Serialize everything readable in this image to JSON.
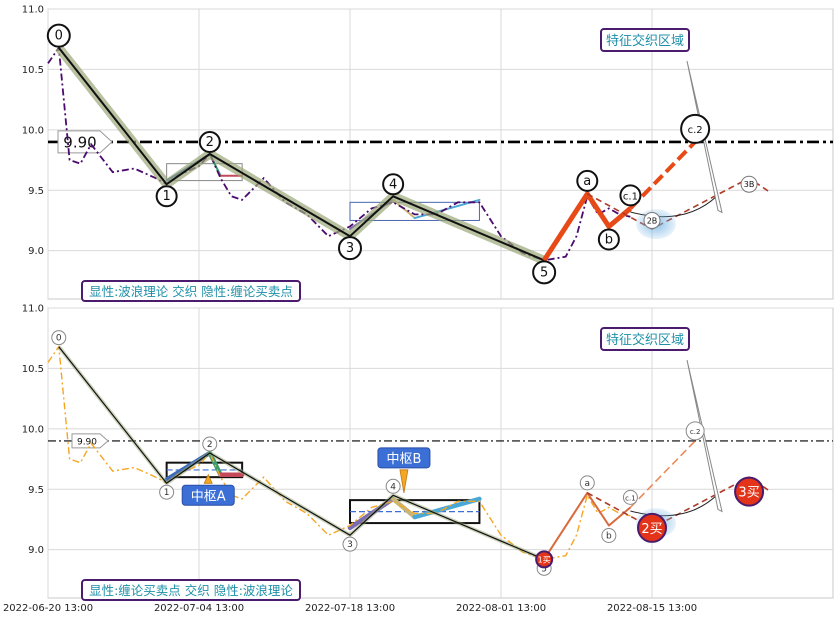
{
  "chart_data": [
    {
      "type": "line",
      "panel": "top",
      "legend_text": "显性:波浪理论 交织 隐性:缠论买卖点",
      "annotation": "特征交织区域",
      "ylim": [
        8.6,
        11.0
      ],
      "yticks": [
        "11.0",
        "10.5",
        "10.0",
        "9.5",
        "9.0"
      ],
      "ytick_values": [
        11.0,
        10.5,
        10.0,
        9.5,
        9.0
      ],
      "level_line": {
        "value": 9.9,
        "label": "9.90"
      },
      "price_series": {
        "color": "#4b0a6e",
        "x": [
          "2022-06-20 13:00",
          "2022-06-21 13:00",
          "2022-06-22 13:00",
          "2022-06-23 13:00",
          "2022-06-24 13:00",
          "2022-06-26 13:00",
          "2022-06-28 13:00",
          "2022-06-30 13:00",
          "2022-07-01 13:00",
          "2022-07-02 13:00",
          "2022-07-04 13:00",
          "2022-07-05 13:00",
          "2022-07-06 13:00",
          "2022-07-07 13:00",
          "2022-07-08 13:00",
          "2022-07-10 13:00",
          "2022-07-12 13:00",
          "2022-07-14 13:00",
          "2022-07-16 13:00",
          "2022-07-18 13:00",
          "2022-07-20 13:00",
          "2022-07-22 13:00",
          "2022-07-24 13:00",
          "2022-07-26 13:00",
          "2022-07-28 13:00",
          "2022-07-30 13:00",
          "2022-08-01 13:00",
          "2022-08-03 13:00",
          "2022-08-05 13:00",
          "2022-08-07 13:00",
          "2022-08-08 13:00",
          "2022-08-09 13:00",
          "2022-08-10 13:00",
          "2022-08-11 13:00",
          "2022-08-12 13:00",
          "2022-08-13 13:00"
        ],
        "y": [
          10.55,
          10.68,
          9.75,
          9.72,
          9.88,
          9.65,
          9.68,
          9.6,
          9.55,
          9.62,
          9.7,
          9.8,
          9.6,
          9.45,
          9.42,
          9.6,
          9.4,
          9.3,
          9.12,
          9.2,
          9.35,
          9.4,
          9.3,
          9.3,
          9.4,
          9.4,
          9.12,
          8.98,
          8.92,
          8.95,
          9.12,
          9.45,
          9.3,
          9.35,
          9.3,
          9.28
        ]
      },
      "wave_points": [
        {
          "label": "0",
          "x": "2022-06-21 13:00",
          "y": 10.68
        },
        {
          "label": "1",
          "x": "2022-07-01 13:00",
          "y": 9.55
        },
        {
          "label": "2",
          "x": "2022-07-05 13:00",
          "y": 9.8
        },
        {
          "label": "3",
          "x": "2022-07-18 13:00",
          "y": 9.12
        },
        {
          "label": "4",
          "x": "2022-07-22 13:00",
          "y": 9.45
        },
        {
          "label": "5",
          "x": "2022-08-05 13:00",
          "y": 8.92
        }
      ],
      "abc_points": [
        {
          "label": "a",
          "x": "2022-08-09 13:00",
          "y": 9.47
        },
        {
          "label": "b",
          "x": "2022-08-11 13:00",
          "y": 9.2
        },
        {
          "label": "c.1",
          "x": "2022-08-13 13:00",
          "y": 9.35
        },
        {
          "label": "c.2",
          "x": "2022-08-19 13:00",
          "y": 9.9
        }
      ],
      "buy_points": [
        {
          "label": "2B",
          "x": "2022-08-15 13:00",
          "y": 9.25
        },
        {
          "label": "3B",
          "x": "2022-08-24 13:00",
          "y": 9.55
        }
      ]
    },
    {
      "type": "line",
      "panel": "bottom",
      "legend_text": "显性:缠论买卖点 交织 隐性:波浪理论",
      "annotation": "特征交织区域",
      "zs_labels": [
        "中枢A",
        "中枢B"
      ],
      "ylim": [
        8.6,
        11.0
      ],
      "yticks": [
        "11.0",
        "10.5",
        "10.0",
        "9.5",
        "9.0"
      ],
      "ytick_values": [
        11.0,
        10.5,
        10.0,
        9.5,
        9.0
      ],
      "level_line": {
        "value": 9.9,
        "label": "9.90"
      },
      "price_series": {
        "color": "#f5a623",
        "same_as_panel": "top"
      },
      "buy_points": [
        {
          "label": "1买",
          "x": "2022-08-05 13:00",
          "y": 8.92
        },
        {
          "label": "2买",
          "x": "2022-08-15 13:00",
          "y": 9.18
        },
        {
          "label": "3买",
          "x": "2022-08-24 13:00",
          "y": 9.48
        }
      ]
    }
  ],
  "x_axis": {
    "ticks": [
      "2022-06-20 13:00",
      "2022-07-04 13:00",
      "2022-07-18 13:00",
      "2022-08-01 13:00",
      "2022-08-15 13:00"
    ]
  },
  "colors": {
    "wave_main": "#111111",
    "wave_halo": "#9aa777",
    "abc_thick": "#e84a17",
    "level_line": "#000000",
    "price_top": "#4b0a6e",
    "price_bottom": "#f5a623",
    "buy_marker": "#e3341a",
    "label_box_border": "#4b1c6e",
    "label_text": "#1f8fa8",
    "zs_fill": "#3b6fd6"
  }
}
